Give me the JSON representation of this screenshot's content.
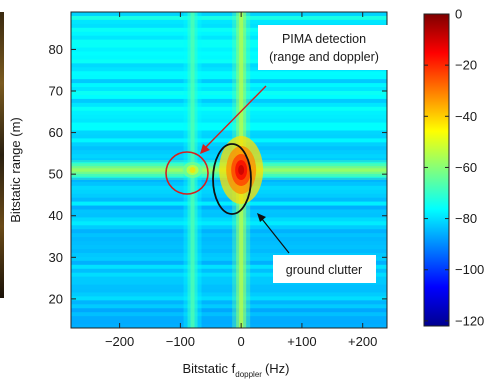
{
  "chart_data": {
    "type": "heatmap",
    "xlabel": "Bitstatic f",
    "xlabel_sub": "doppler",
    "xlabel_unit": "(Hz)",
    "ylabel": "Bitstatic range (m)",
    "xlim": [
      -280,
      240
    ],
    "ylim": [
      13,
      89
    ],
    "x_ticks": [
      {
        "value": -200,
        "label": "−200"
      },
      {
        "value": -100,
        "label": "−100"
      },
      {
        "value": 0,
        "label": "0"
      },
      {
        "value": 100,
        "label": "+100"
      },
      {
        "value": 200,
        "label": "+200"
      }
    ],
    "y_ticks": [
      {
        "value": 20,
        "label": "20"
      },
      {
        "value": 30,
        "label": "30"
      },
      {
        "value": 40,
        "label": "40"
      },
      {
        "value": 50,
        "label": "50"
      },
      {
        "value": 60,
        "label": "60"
      },
      {
        "value": 70,
        "label": "70"
      },
      {
        "value": 80,
        "label": "80"
      }
    ],
    "colorbar": {
      "range": [
        -122,
        0
      ],
      "ticks": [
        {
          "value": 0,
          "label": "0"
        },
        {
          "value": -20,
          "label": "−20"
        },
        {
          "value": -40,
          "label": "−40"
        },
        {
          "value": -60,
          "label": "−60"
        },
        {
          "value": -80,
          "label": "−80"
        },
        {
          "value": -100,
          "label": "−100"
        },
        {
          "value": -120,
          "label": "−120"
        }
      ]
    },
    "background_level": -85,
    "features": {
      "range_band": {
        "y": 51,
        "level": -62
      },
      "doppler_lines": [
        {
          "x": 0,
          "level": -58
        },
        {
          "x": -80,
          "level": -70
        }
      ],
      "peaks": [
        {
          "x": 0,
          "y": 51,
          "level": -8
        },
        {
          "x": -80,
          "y": 51,
          "level": -28
        }
      ]
    },
    "annotations": [
      {
        "name": "pima-detection",
        "lines": [
          "PIMA detection",
          "(range and doppler)"
        ],
        "shape": "circle",
        "x": -80,
        "y": 51,
        "color": "#d42020"
      },
      {
        "name": "ground-clutter",
        "lines": [
          "ground clutter"
        ],
        "shape": "ellipse",
        "x": 0,
        "y": 50,
        "color": "#111111"
      }
    ]
  }
}
